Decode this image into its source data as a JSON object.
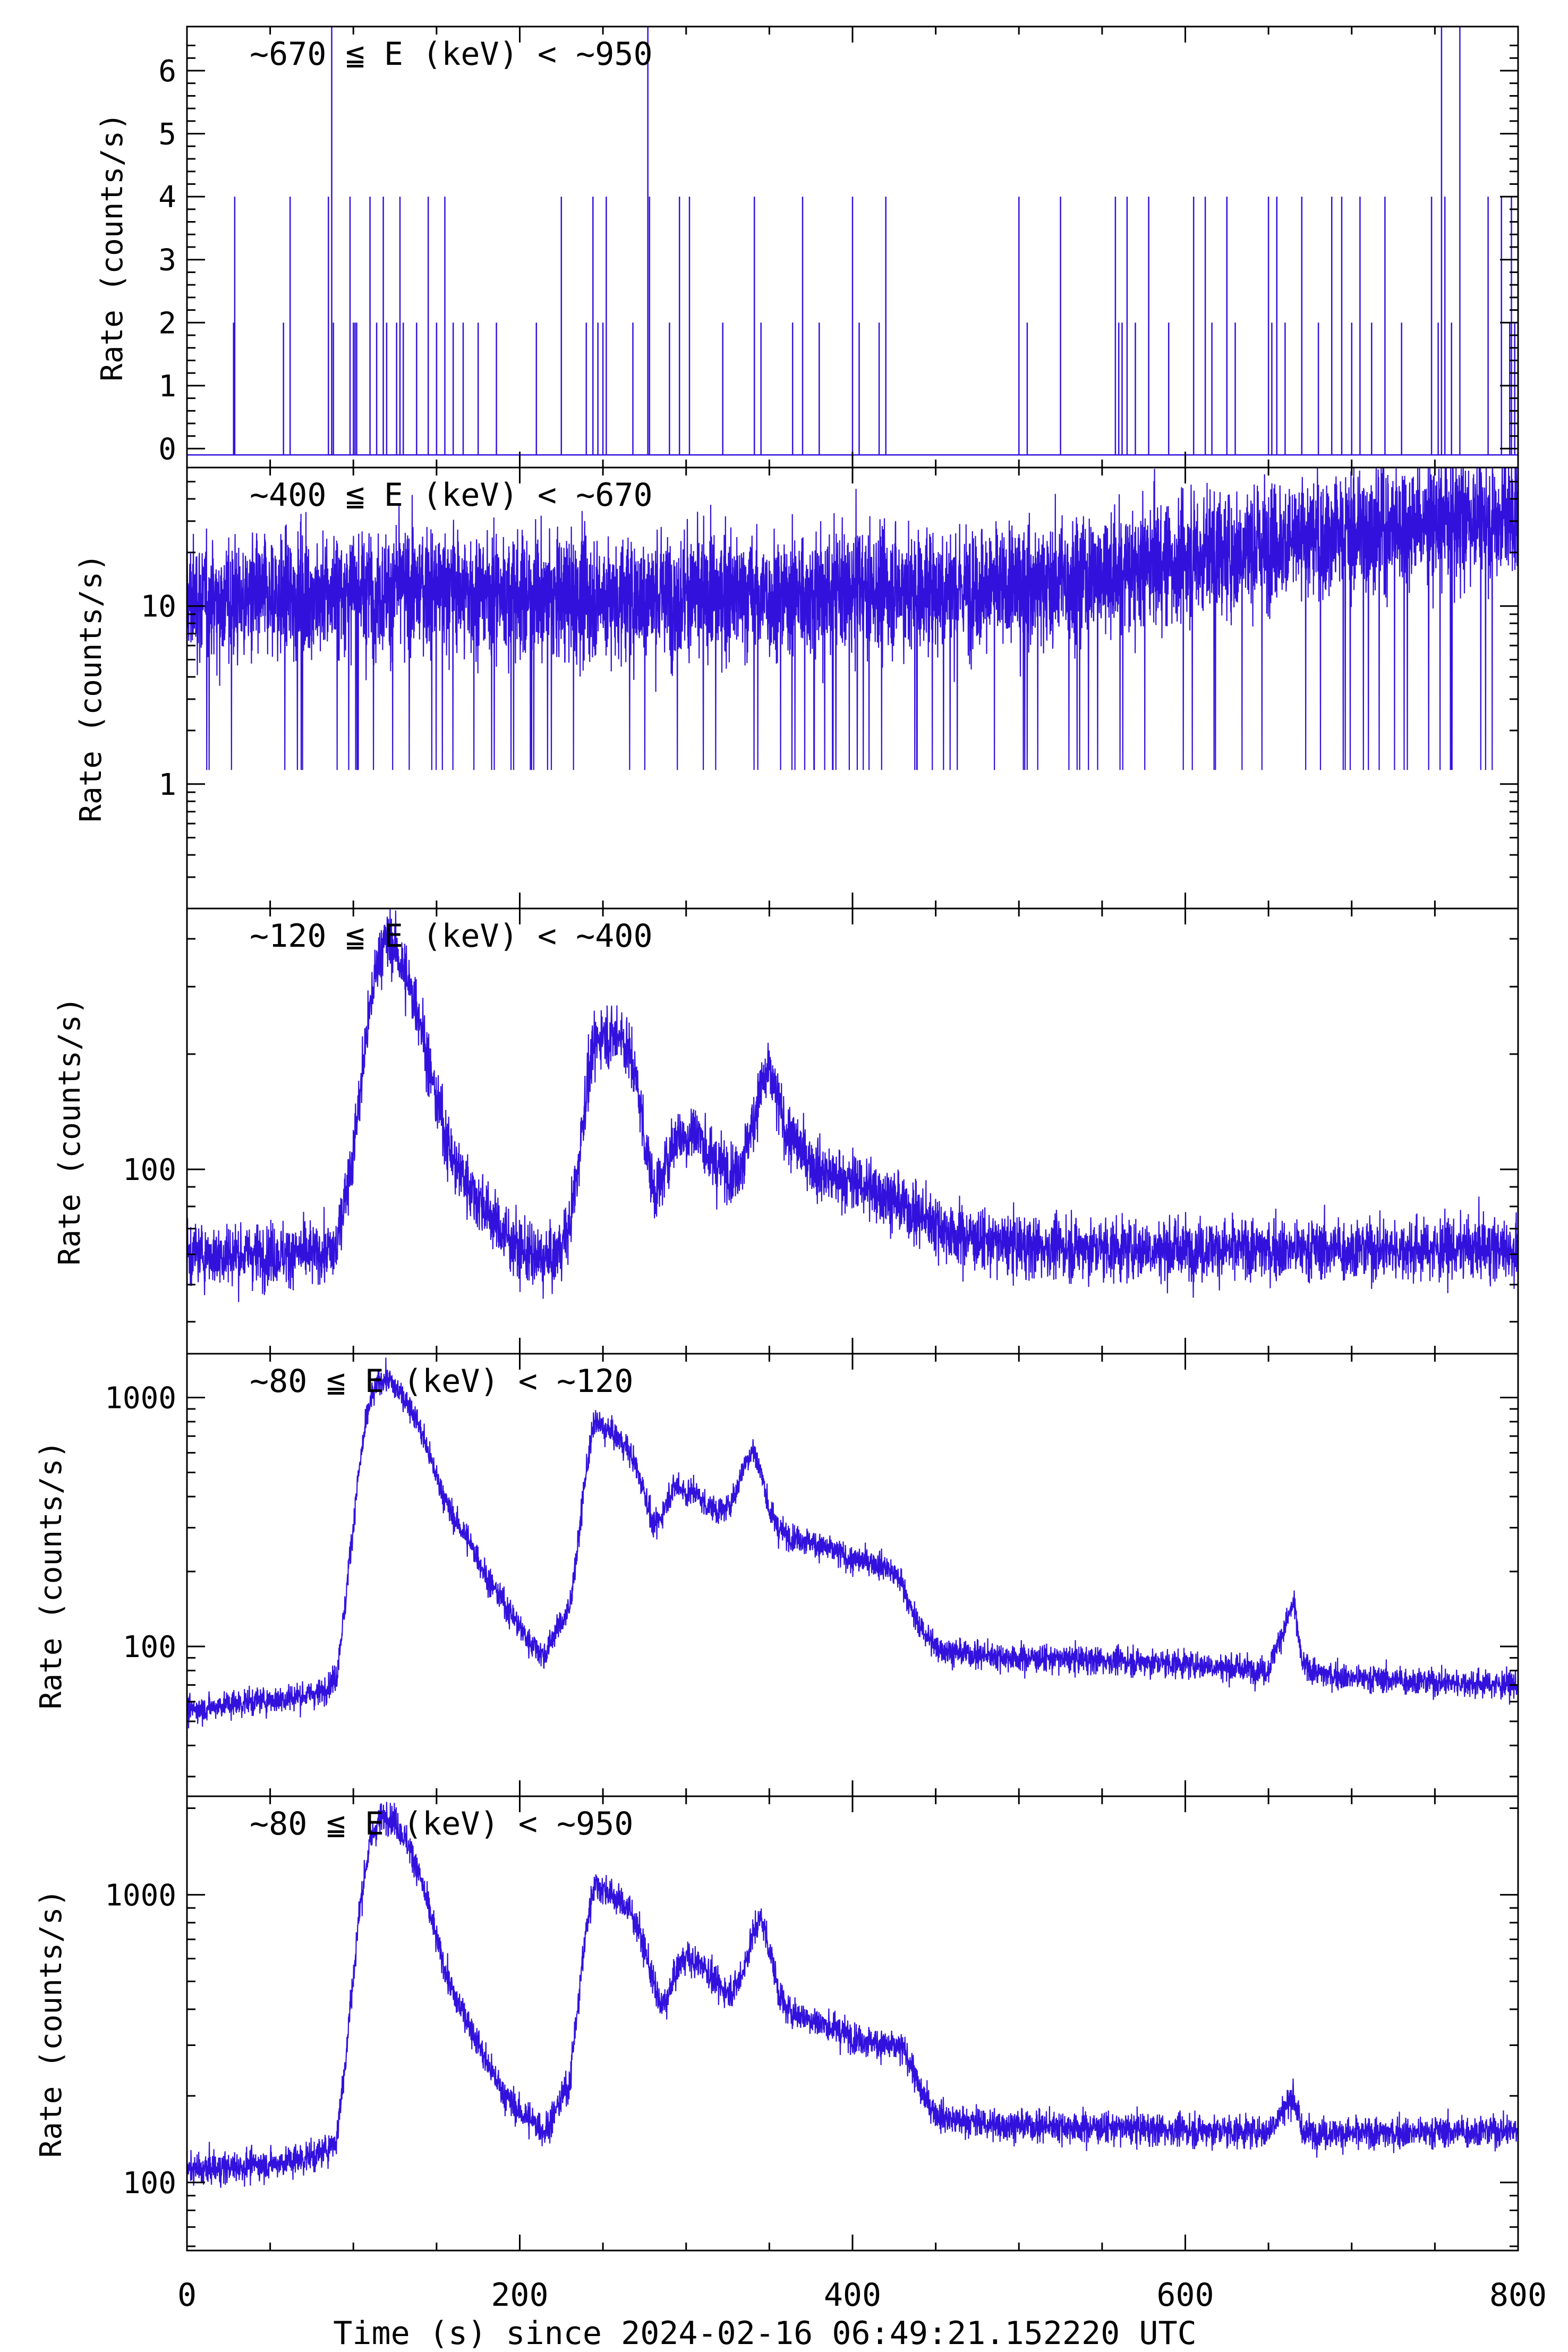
{
  "figure": {
    "x_axis_label": "Time (s) since 2024-02-16 06:49:21.152220 UTC",
    "x_tick_labels": [
      "0",
      "200",
      "400",
      "600",
      "800"
    ]
  },
  "chart_data": [
    {
      "type": "line",
      "title": "~670 ≦ E (keV) < ~950",
      "ylabel": "Rate (counts/s)",
      "yscale": "linear",
      "ylim": [
        -0.3,
        6.7
      ],
      "xlim": [
        0,
        800
      ],
      "y_tick_values": [
        0,
        1,
        2,
        3,
        4,
        5,
        6
      ],
      "y_tick_labels": [
        "0",
        "1",
        "2",
        "3",
        "4",
        "5",
        "6"
      ],
      "color": "#3311dd",
      "series": [
        {
          "name": "~670-950 keV",
          "x": [
            5,
            28,
            28.7,
            58,
            62,
            85,
            87,
            88,
            98,
            100,
            101,
            102,
            110,
            114,
            118,
            120,
            126,
            128,
            130,
            138,
            145,
            150,
            155,
            160,
            166,
            175,
            186,
            210,
            225,
            240,
            244,
            247,
            250,
            252,
            268,
            277,
            278,
            290,
            296,
            302,
            322,
            341,
            345,
            364,
            370,
            380,
            400,
            404,
            416,
            420,
            500,
            505,
            525,
            558,
            560,
            562,
            565,
            570,
            578,
            590,
            605,
            612,
            616,
            625,
            630,
            650,
            652,
            655,
            660,
            670,
            680,
            688,
            694,
            700,
            705,
            712,
            720,
            730,
            748,
            752,
            754,
            756,
            760,
            765,
            782,
            790,
            795,
            796,
            798
          ],
          "y": [
            -0.1,
            2,
            4,
            2,
            4,
            4,
            6.7,
            2,
            4,
            2,
            2,
            2,
            4,
            2,
            4,
            2,
            2,
            4,
            2,
            2,
            4,
            2,
            4,
            2,
            2,
            2,
            2,
            2,
            4,
            2,
            4,
            2,
            2,
            4,
            2,
            6.7,
            4,
            2,
            4,
            4,
            2,
            4,
            2,
            2,
            4,
            2,
            4,
            2,
            2,
            4,
            4,
            2,
            4,
            4,
            2,
            2,
            4,
            2,
            4,
            2,
            4,
            4,
            2,
            4,
            2,
            4,
            2,
            4,
            2,
            4,
            2,
            4,
            4,
            2,
            4,
            2,
            4,
            2,
            4,
            2,
            6.7,
            4,
            2,
            6.7,
            4,
            4,
            2,
            4,
            2
          ]
        }
      ]
    },
    {
      "type": "line",
      "title": "~400 ≦ E (keV) < ~670",
      "ylabel": "Rate (counts/s)",
      "yscale": "log",
      "ylim": [
        0.2,
        60
      ],
      "xlim": [
        0,
        800
      ],
      "y_tick_values": [
        1,
        10
      ],
      "y_tick_labels": [
        "1",
        "10"
      ],
      "color": "#3311dd",
      "series": [
        {
          "name": "~400-670 keV",
          "x": [
            0,
            50,
            100,
            150,
            200,
            250,
            300,
            350,
            400,
            450,
            500,
            550,
            600,
            650,
            700,
            750,
            800
          ],
          "y": [
            11,
            11,
            12,
            12.5,
            11.5,
            11,
            11.5,
            11.5,
            12,
            12.5,
            13,
            15,
            18,
            22,
            26,
            30,
            33
          ]
        }
      ]
    },
    {
      "type": "line",
      "title": "~120 ≦ E (keV) < ~400",
      "ylabel": "Rate (counts/s)",
      "yscale": "log",
      "ylim": [
        33,
        480
      ],
      "xlim": [
        0,
        800
      ],
      "y_tick_values": [
        100
      ],
      "y_tick_labels": [
        "100"
      ],
      "color": "#3311dd",
      "series": [
        {
          "name": "~120-400 keV",
          "x": [
            0,
            20,
            40,
            60,
            80,
            90,
            95,
            100,
            105,
            110,
            115,
            120,
            125,
            130,
            135,
            140,
            145,
            150,
            155,
            160,
            170,
            180,
            190,
            200,
            210,
            220,
            230,
            235,
            240,
            245,
            250,
            255,
            260,
            265,
            270,
            275,
            280,
            285,
            290,
            295,
            300,
            305,
            310,
            315,
            320,
            325,
            330,
            335,
            340,
            345,
            350,
            355,
            360,
            370,
            380,
            390,
            400,
            410,
            420,
            430,
            440,
            450,
            460,
            480,
            500,
            550,
            600,
            650,
            700,
            750,
            800
          ],
          "y": [
            60,
            60,
            60,
            60,
            60,
            62,
            85,
            110,
            170,
            260,
            360,
            400,
            380,
            330,
            290,
            250,
            190,
            150,
            125,
            105,
            90,
            78,
            68,
            62,
            58,
            58,
            70,
            100,
            160,
            210,
            230,
            220,
            230,
            205,
            170,
            120,
            88,
            92,
            110,
            125,
            120,
            128,
            118,
            105,
            102,
            100,
            98,
            110,
            130,
            165,
            180,
            150,
            125,
            110,
            100,
            95,
            92,
            90,
            86,
            80,
            76,
            72,
            68,
            65,
            63,
            62,
            62,
            62,
            62,
            62,
            62
          ]
        }
      ]
    },
    {
      "type": "line",
      "title": "~80 ≦ E (keV) < ~120",
      "ylabel": "Rate (counts/s)",
      "yscale": "log",
      "ylim": [
        25,
        1500
      ],
      "xlim": [
        0,
        800
      ],
      "y_tick_values": [
        100,
        1000
      ],
      "y_tick_labels": [
        "100",
        "1000"
      ],
      "color": "#3311dd",
      "series": [
        {
          "name": "~80-120 keV",
          "x": [
            0,
            20,
            40,
            60,
            80,
            90,
            95,
            100,
            105,
            110,
            115,
            120,
            125,
            130,
            135,
            140,
            145,
            150,
            155,
            160,
            170,
            180,
            190,
            200,
            205,
            210,
            215,
            220,
            230,
            235,
            240,
            245,
            250,
            255,
            260,
            265,
            270,
            275,
            280,
            285,
            290,
            295,
            300,
            305,
            310,
            315,
            320,
            325,
            330,
            335,
            340,
            345,
            350,
            355,
            360,
            370,
            380,
            390,
            400,
            410,
            420,
            430,
            435,
            440,
            445,
            450,
            460,
            480,
            500,
            550,
            600,
            650,
            660,
            665,
            670,
            680,
            700,
            750,
            800
          ],
          "y": [
            55,
            58,
            60,
            62,
            65,
            75,
            140,
            300,
            600,
            950,
            1150,
            1200,
            1100,
            1000,
            900,
            750,
            600,
            480,
            390,
            330,
            260,
            190,
            150,
            120,
            105,
            100,
            90,
            110,
            140,
            250,
            500,
            800,
            750,
            720,
            680,
            620,
            520,
            420,
            300,
            330,
            410,
            450,
            410,
            420,
            380,
            360,
            350,
            360,
            420,
            540,
            620,
            500,
            350,
            300,
            280,
            270,
            255,
            240,
            220,
            220,
            210,
            180,
            140,
            120,
            110,
            100,
            95,
            92,
            90,
            88,
            85,
            80,
            120,
            150,
            85,
            78,
            75,
            72,
            70
          ]
        }
      ]
    },
    {
      "type": "line",
      "title": "~80 ≦ E (keV) < ~950",
      "ylabel": "Rate (counts/s)",
      "yscale": "log",
      "ylim": [
        58,
        2200
      ],
      "xlim": [
        0,
        800
      ],
      "y_tick_values": [
        100,
        1000
      ],
      "y_tick_labels": [
        "100",
        "1000"
      ],
      "color": "#3311dd",
      "series": [
        {
          "name": "~80-950 keV",
          "x": [
            0,
            20,
            40,
            60,
            80,
            90,
            95,
            100,
            105,
            110,
            115,
            120,
            125,
            130,
            135,
            140,
            145,
            150,
            155,
            160,
            170,
            180,
            190,
            200,
            210,
            215,
            220,
            230,
            235,
            240,
            245,
            250,
            255,
            260,
            265,
            270,
            275,
            280,
            285,
            290,
            295,
            300,
            305,
            310,
            315,
            320,
            325,
            330,
            335,
            340,
            345,
            350,
            355,
            360,
            370,
            380,
            390,
            400,
            410,
            420,
            430,
            435,
            440,
            445,
            450,
            460,
            480,
            500,
            550,
            600,
            650,
            665,
            670,
            700,
            750,
            800
          ],
          "y": [
            110,
            112,
            115,
            118,
            125,
            140,
            250,
            500,
            1000,
            1500,
            1800,
            1900,
            1800,
            1600,
            1400,
            1150,
            900,
            700,
            550,
            450,
            350,
            260,
            205,
            175,
            160,
            150,
            170,
            220,
            400,
            750,
            1100,
            1050,
            1000,
            950,
            900,
            800,
            650,
            500,
            400,
            450,
            560,
            620,
            570,
            580,
            520,
            480,
            460,
            480,
            560,
            720,
            830,
            650,
            470,
            400,
            380,
            360,
            340,
            320,
            310,
            300,
            290,
            260,
            210,
            190,
            175,
            165,
            160,
            158,
            155,
            152,
            150,
            200,
            150,
            148,
            150,
            152
          ]
        }
      ]
    }
  ]
}
